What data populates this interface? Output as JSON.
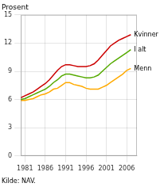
{
  "chart_data": {
    "type": "line",
    "ylabel": "Prosent",
    "source": "Kilde: NAV.",
    "x": [
      1980,
      1981,
      1982,
      1983,
      1984,
      1985,
      1986,
      1987,
      1988,
      1989,
      1990,
      1991,
      1992,
      1993,
      1994,
      1995,
      1996,
      1997,
      1998,
      1999,
      2000,
      2001,
      2002,
      2003,
      2004,
      2005,
      2006,
      2007
    ],
    "series": [
      {
        "name": "Kvinner",
        "color": "#cc0000",
        "values": [
          6.2,
          6.4,
          6.6,
          6.8,
          7.1,
          7.4,
          7.7,
          8.1,
          8.6,
          9.1,
          9.5,
          9.7,
          9.7,
          9.6,
          9.5,
          9.5,
          9.5,
          9.6,
          9.8,
          10.2,
          10.7,
          11.2,
          11.7,
          12.0,
          12.3,
          12.5,
          12.7,
          12.9
        ]
      },
      {
        "name": "I alt",
        "color": "#55aa00",
        "values": [
          6.0,
          6.1,
          6.3,
          6.5,
          6.7,
          6.9,
          7.1,
          7.4,
          7.8,
          8.1,
          8.5,
          8.7,
          8.7,
          8.6,
          8.5,
          8.4,
          8.3,
          8.3,
          8.4,
          8.6,
          9.0,
          9.4,
          9.8,
          10.1,
          10.4,
          10.7,
          11.0,
          11.3
        ]
      },
      {
        "name": "Menn",
        "color": "#ffaa00",
        "values": [
          5.9,
          5.9,
          6.0,
          6.1,
          6.3,
          6.5,
          6.6,
          6.8,
          7.1,
          7.2,
          7.5,
          7.8,
          7.8,
          7.6,
          7.5,
          7.4,
          7.2,
          7.1,
          7.1,
          7.1,
          7.3,
          7.5,
          7.8,
          8.1,
          8.4,
          8.7,
          9.1,
          9.3
        ]
      }
    ],
    "xlim": [
      1980,
      2008.5
    ],
    "xticks": [
      1981,
      1986,
      1991,
      1996,
      2001,
      2006
    ],
    "ylim": [
      0,
      15
    ],
    "yticks": [
      0,
      3,
      6,
      9,
      12,
      15
    ],
    "grid": true
  }
}
